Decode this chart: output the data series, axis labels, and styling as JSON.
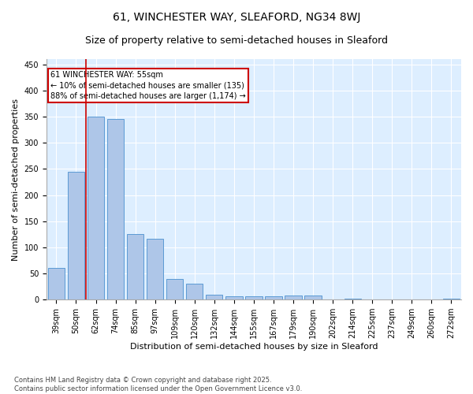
{
  "title": "61, WINCHESTER WAY, SLEAFORD, NG34 8WJ",
  "subtitle": "Size of property relative to semi-detached houses in Sleaford",
  "xlabel": "Distribution of semi-detached houses by size in Sleaford",
  "ylabel": "Number of semi-detached properties",
  "categories": [
    "39sqm",
    "50sqm",
    "62sqm",
    "74sqm",
    "85sqm",
    "97sqm",
    "109sqm",
    "120sqm",
    "132sqm",
    "144sqm",
    "155sqm",
    "167sqm",
    "179sqm",
    "190sqm",
    "202sqm",
    "214sqm",
    "225sqm",
    "237sqm",
    "249sqm",
    "260sqm",
    "272sqm"
  ],
  "values": [
    60,
    245,
    350,
    345,
    125,
    117,
    40,
    30,
    10,
    7,
    7,
    7,
    8,
    8,
    0,
    2,
    0,
    1,
    0,
    0,
    2
  ],
  "bar_color": "#aec6e8",
  "bar_edge_color": "#5b9bd5",
  "background_color": "#ddeeff",
  "grid_color": "#ffffff",
  "vline_color": "#cc0000",
  "annotation_text": "61 WINCHESTER WAY: 55sqm\n← 10% of semi-detached houses are smaller (135)\n88% of semi-detached houses are larger (1,174) →",
  "annotation_box_color": "#cc0000",
  "ylim": [
    0,
    460
  ],
  "yticks": [
    0,
    50,
    100,
    150,
    200,
    250,
    300,
    350,
    400,
    450
  ],
  "footer_text": "Contains HM Land Registry data © Crown copyright and database right 2025.\nContains public sector information licensed under the Open Government Licence v3.0.",
  "title_fontsize": 10,
  "subtitle_fontsize": 9,
  "axis_label_fontsize": 8,
  "tick_fontsize": 7,
  "footer_fontsize": 6
}
